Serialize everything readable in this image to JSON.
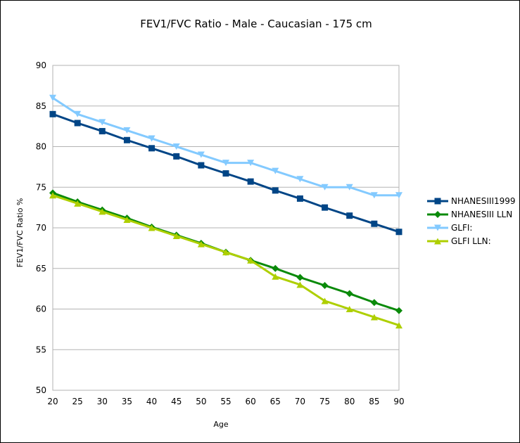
{
  "chart_data": {
    "type": "line",
    "title": "FEV1/FVC Ratio - Male - Caucasian - 175 cm",
    "xlabel": "Age",
    "ylabel": "FEV1/FVC Ratio %",
    "x": [
      20,
      25,
      30,
      35,
      40,
      45,
      50,
      55,
      60,
      65,
      70,
      75,
      80,
      85,
      90
    ],
    "ylim": [
      50,
      90
    ],
    "yticks": [
      50,
      55,
      60,
      65,
      70,
      75,
      80,
      85,
      90
    ],
    "grid": "horizontal",
    "legend_position": "right",
    "series": [
      {
        "name": "NHANESIII1999",
        "color": "#004586",
        "marker": "square",
        "values": [
          84.0,
          82.9,
          81.9,
          80.8,
          79.8,
          78.8,
          77.7,
          76.7,
          75.7,
          74.6,
          73.6,
          72.5,
          71.5,
          70.5,
          69.5
        ]
      },
      {
        "name": "NHANESIII LLN",
        "color": "#0a8a0a",
        "marker": "diamond",
        "values": [
          74.3,
          73.2,
          72.2,
          71.2,
          70.1,
          69.1,
          68.1,
          67.0,
          66.0,
          65.0,
          63.9,
          62.9,
          61.9,
          60.8,
          59.8
        ]
      },
      {
        "name": "GLFI:",
        "color": "#83caff",
        "marker": "triangle-down",
        "values": [
          86,
          84,
          83,
          82,
          81,
          80,
          79,
          78,
          78,
          77,
          76,
          75,
          75,
          74,
          74
        ]
      },
      {
        "name": "GLFI LLN:",
        "color": "#aecf00",
        "marker": "triangle-up",
        "values": [
          74,
          73,
          72,
          71,
          70,
          69,
          68,
          67,
          66,
          64,
          63,
          61,
          60,
          59,
          58
        ]
      }
    ]
  }
}
